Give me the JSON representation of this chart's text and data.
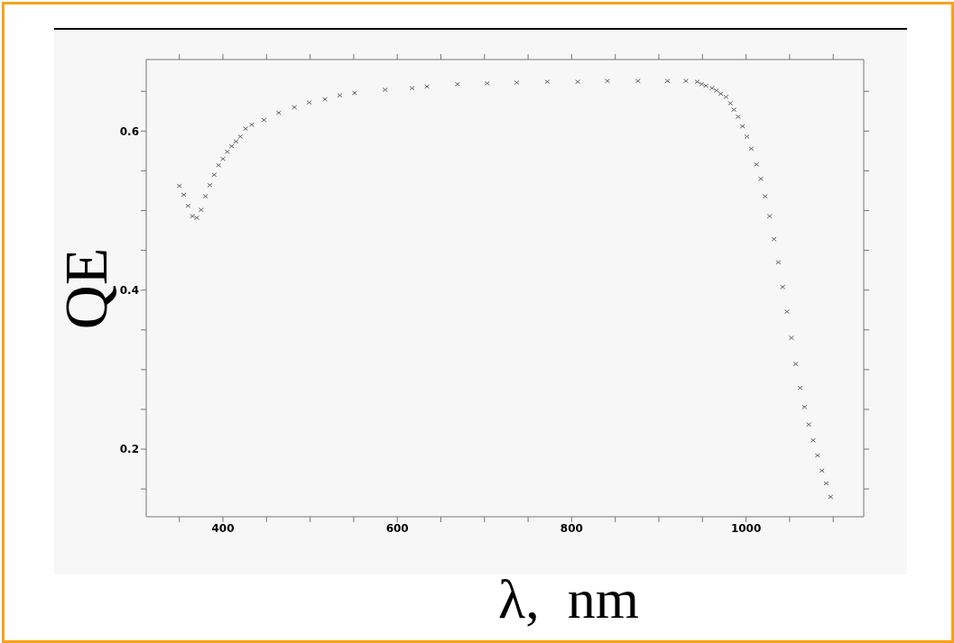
{
  "chart_data": {
    "type": "scatter",
    "xlabel": "λ,  nm",
    "ylabel": "QE",
    "marker": "cross",
    "grid": false,
    "legend": false,
    "xlim": [
      312,
      1135
    ],
    "ylim": [
      0.115,
      0.69
    ],
    "xticks": [
      {
        "value": 350,
        "label": null
      },
      400,
      {
        "value": 450,
        "label": null
      },
      {
        "value": 500,
        "label": null
      },
      {
        "value": 550,
        "label": null
      },
      600,
      {
        "value": 650,
        "label": null
      },
      {
        "value": 700,
        "label": null
      },
      {
        "value": 750,
        "label": null
      },
      800,
      {
        "value": 850,
        "label": null
      },
      {
        "value": 900,
        "label": null
      },
      {
        "value": 950,
        "label": null
      },
      1000,
      {
        "value": 1050,
        "label": null
      },
      {
        "value": 1100,
        "label": null
      }
    ],
    "yticks": [
      {
        "value": 0.15,
        "label": null
      },
      0.2,
      {
        "value": 0.25,
        "label": null
      },
      {
        "value": 0.3,
        "label": null
      },
      {
        "value": 0.35,
        "label": null
      },
      0.4,
      {
        "value": 0.45,
        "label": null
      },
      {
        "value": 0.5,
        "label": null
      },
      {
        "value": 0.55,
        "label": null
      },
      0.6,
      {
        "value": 0.65,
        "label": null
      }
    ],
    "series": [
      {
        "color": "#606060",
        "x": [
          350,
          355,
          360,
          365,
          370,
          375,
          380,
          385,
          390,
          395,
          400,
          405,
          410,
          415,
          420,
          426,
          433,
          447,
          464,
          482,
          499,
          517,
          534,
          551,
          586,
          617,
          634,
          669,
          703,
          737,
          772,
          807,
          841,
          876,
          910,
          931,
          944,
          949,
          954,
          961,
          966,
          971,
          977,
          982,
          986,
          991,
          996,
          1001,
          1006,
          1012,
          1017,
          1022,
          1027,
          1032,
          1037,
          1042,
          1047,
          1052,
          1057,
          1062,
          1067,
          1072,
          1077,
          1082,
          1087,
          1092,
          1097
        ],
        "values": [
          0.531,
          0.52,
          0.506,
          0.493,
          0.491,
          0.501,
          0.518,
          0.532,
          0.545,
          0.557,
          0.565,
          0.574,
          0.581,
          0.587,
          0.593,
          0.603,
          0.608,
          0.614,
          0.623,
          0.63,
          0.636,
          0.64,
          0.645,
          0.648,
          0.652,
          0.654,
          0.656,
          0.659,
          0.66,
          0.661,
          0.662,
          0.662,
          0.663,
          0.663,
          0.663,
          0.663,
          0.662,
          0.659,
          0.657,
          0.654,
          0.651,
          0.647,
          0.643,
          0.635,
          0.627,
          0.618,
          0.606,
          0.593,
          0.578,
          0.558,
          0.54,
          0.518,
          0.493,
          0.464,
          0.435,
          0.404,
          0.373,
          0.34,
          0.307,
          0.277,
          0.253,
          0.231,
          0.211,
          0.192,
          0.173,
          0.157,
          0.14
        ]
      }
    ]
  }
}
